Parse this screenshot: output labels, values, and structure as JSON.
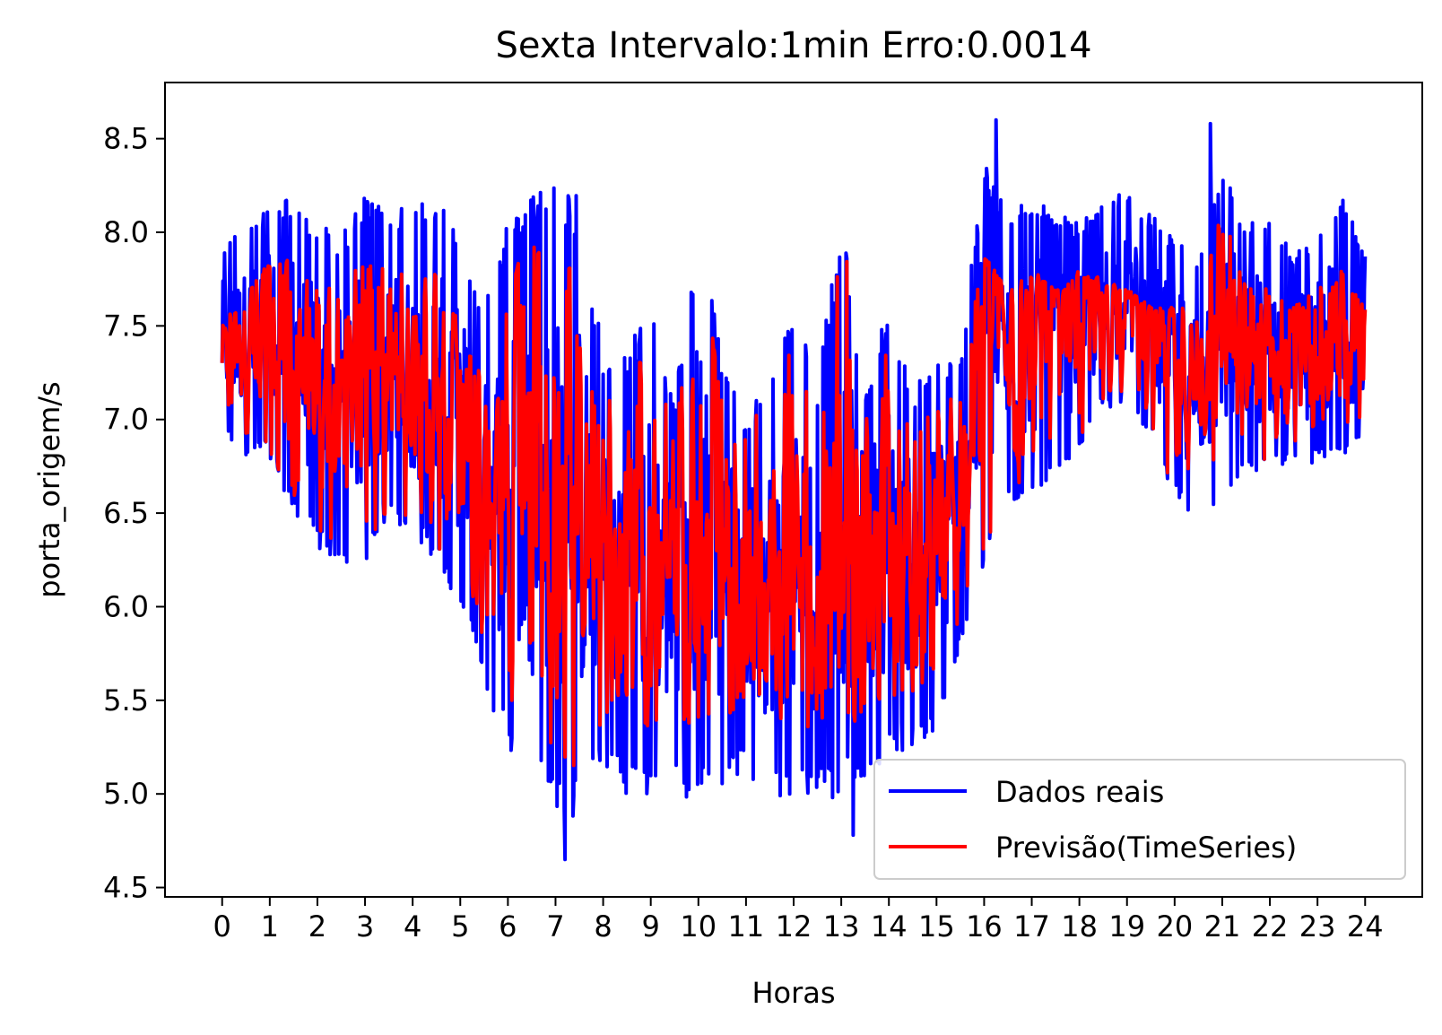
{
  "chart_data": {
    "type": "line",
    "title": "Sexta Intervalo:1min Erro:0.0014",
    "xlabel": "Horas",
    "ylabel": "porta_origem/s",
    "xlim": [
      -1.2,
      25.2
    ],
    "ylim": [
      4.45,
      8.8
    ],
    "x_ticks": [
      0,
      1,
      2,
      3,
      4,
      5,
      6,
      7,
      8,
      9,
      10,
      11,
      12,
      13,
      14,
      15,
      16,
      17,
      18,
      19,
      20,
      21,
      22,
      23,
      24
    ],
    "x_tick_labels": [
      "0",
      "1",
      "2",
      "3",
      "4",
      "5",
      "6",
      "7",
      "8",
      "9",
      "10",
      "11",
      "12",
      "13",
      "14",
      "15",
      "16",
      "17",
      "18",
      "19",
      "20",
      "21",
      "22",
      "23",
      "24"
    ],
    "y_ticks": [
      4.5,
      5.0,
      5.5,
      6.0,
      6.5,
      7.0,
      7.5,
      8.0,
      8.5
    ],
    "y_tick_labels": [
      "4.5",
      "5.0",
      "5.5",
      "6.0",
      "6.5",
      "7.0",
      "7.5",
      "8.0",
      "8.5"
    ],
    "grid": false,
    "legend_position": "lower-right",
    "series": [
      {
        "name": "Dados reais",
        "color": "#0000ff",
        "upper_envelope": {
          "x": [
            0,
            0.5,
            1,
            1.5,
            2,
            2.5,
            3,
            3.5,
            4,
            4.5,
            5,
            5.5,
            6,
            6.5,
            7,
            7.5,
            8,
            8.5,
            9,
            9.5,
            10,
            10.5,
            11,
            11.5,
            12,
            12.5,
            13,
            13.5,
            14,
            14.5,
            15,
            15.5,
            16,
            16.5,
            17,
            17.5,
            18,
            18.5,
            19,
            19.5,
            20,
            20.5,
            21,
            21.5,
            22,
            22.5,
            23,
            23.5,
            24
          ],
          "y": [
            7.95,
            8.05,
            8.15,
            8.2,
            8.05,
            8.0,
            8.2,
            8.1,
            8.15,
            8.2,
            8.0,
            7.6,
            8.1,
            8.2,
            8.25,
            8.2,
            7.35,
            7.4,
            7.6,
            7.1,
            8.1,
            7.3,
            7.0,
            7.3,
            7.6,
            7.2,
            8.1,
            7.2,
            7.6,
            7.2,
            7.3,
            7.35,
            8.4,
            8.1,
            8.2,
            8.1,
            8.05,
            8.2,
            8.2,
            8.1,
            8.0,
            7.9,
            8.4,
            8.05,
            8.1,
            7.9,
            8.0,
            8.2,
            7.9
          ]
        },
        "lower_envelope": {
          "x": [
            0,
            0.5,
            1,
            1.5,
            2,
            2.5,
            3,
            3.5,
            4,
            4.5,
            5,
            5.5,
            6,
            6.5,
            7,
            7.5,
            8,
            8.5,
            9,
            9.5,
            10,
            10.5,
            11,
            11.5,
            12,
            12.5,
            13,
            13.5,
            14,
            14.5,
            15,
            15.5,
            16,
            16.5,
            17,
            17.5,
            18,
            18.5,
            19,
            19.5,
            20,
            20.5,
            21,
            21.5,
            22,
            22.5,
            23,
            23.5,
            24
          ],
          "y": [
            6.9,
            6.8,
            6.8,
            6.5,
            6.3,
            6.25,
            6.2,
            6.5,
            6.35,
            6.2,
            6.0,
            5.6,
            5.2,
            5.0,
            4.9,
            4.85,
            5.1,
            5.0,
            4.95,
            5.0,
            4.95,
            5.05,
            5.1,
            4.95,
            4.95,
            5.0,
            4.95,
            5.1,
            5.2,
            5.25,
            5.3,
            5.75,
            6.2,
            6.55,
            6.6,
            6.65,
            6.85,
            7.05,
            7.1,
            6.9,
            6.55,
            6.45,
            6.55,
            6.7,
            6.7,
            6.75,
            6.75,
            6.8,
            6.9
          ]
        },
        "spikes": [
          {
            "x": 7.2,
            "y": 4.65
          },
          {
            "x": 13.25,
            "y": 4.78
          },
          {
            "x": 16.25,
            "y": 8.6
          },
          {
            "x": 20.75,
            "y": 8.58
          }
        ]
      },
      {
        "name": "Previsão(TimeSeries)",
        "color": "#ff0000",
        "upper_envelope": {
          "x": [
            0,
            0.5,
            1,
            1.5,
            2,
            2.5,
            3,
            3.5,
            4,
            4.5,
            5,
            5.5,
            6,
            6.5,
            7,
            7.5,
            8,
            8.5,
            9,
            9.5,
            10,
            10.5,
            11,
            11.5,
            12,
            12.5,
            13,
            13.5,
            14,
            14.5,
            15,
            15.5,
            16,
            16.5,
            17,
            17.5,
            18,
            18.5,
            19,
            19.5,
            20,
            20.5,
            21,
            21.5,
            22,
            22.5,
            23,
            23.5,
            24
          ],
          "y": [
            7.5,
            7.7,
            7.85,
            7.9,
            7.7,
            7.75,
            7.85,
            7.8,
            7.8,
            7.8,
            7.5,
            7.2,
            7.75,
            7.95,
            7.85,
            7.85,
            7.1,
            7.2,
            7.4,
            6.9,
            7.95,
            7.1,
            6.9,
            7.2,
            7.4,
            7.0,
            8.1,
            7.0,
            7.45,
            7.0,
            7.05,
            7.2,
            7.9,
            7.7,
            7.8,
            7.7,
            7.8,
            7.75,
            7.7,
            7.6,
            7.6,
            7.6,
            8.15,
            7.7,
            7.7,
            7.6,
            7.7,
            7.8,
            7.6
          ]
        },
        "lower_envelope": {
          "x": [
            0,
            0.5,
            1,
            1.5,
            2,
            2.5,
            3,
            3.5,
            4,
            4.5,
            5,
            5.5,
            6,
            6.5,
            7,
            7.5,
            8,
            8.5,
            9,
            9.5,
            10,
            10.5,
            11,
            11.5,
            12,
            12.5,
            13,
            13.5,
            14,
            14.5,
            15,
            15.5,
            16,
            16.5,
            17,
            17.5,
            18,
            18.5,
            19,
            19.5,
            20,
            20.5,
            21,
            21.5,
            22,
            22.5,
            23,
            23.5,
            24
          ],
          "y": [
            6.85,
            6.85,
            6.8,
            6.6,
            6.4,
            6.3,
            6.2,
            6.55,
            6.45,
            6.3,
            6.1,
            5.8,
            5.5,
            5.35,
            5.25,
            5.1,
            5.4,
            5.4,
            5.35,
            5.4,
            5.35,
            5.4,
            5.45,
            5.3,
            5.3,
            5.35,
            5.3,
            5.45,
            5.5,
            5.55,
            5.6,
            5.9,
            6.3,
            6.6,
            6.65,
            6.7,
            6.9,
            7.1,
            7.15,
            6.95,
            6.6,
            6.5,
            6.6,
            6.75,
            6.75,
            6.8,
            6.8,
            6.85,
            6.95
          ]
        }
      }
    ]
  }
}
